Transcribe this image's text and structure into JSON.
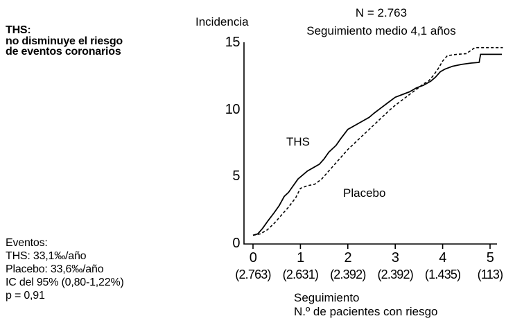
{
  "figure": {
    "headline": [
      "THS:",
      "no disminuye el riesgo",
      "de eventos coronarios"
    ],
    "top_note": {
      "n_total": "N = 2.763",
      "followup": "Seguimiento medio 4,1 años"
    },
    "events_box": {
      "title": "Eventos:",
      "ths_rate": "THS: 33,1‰/año",
      "placebo_rate": "Placebo: 33,6‰/año",
      "ci": "IC del 95% (0,80-1,22%)",
      "p_value": "p = 0,91"
    }
  },
  "colors": {
    "ink": "#000000",
    "background": "#ffffff"
  },
  "chart_data": {
    "type": "line",
    "title": "",
    "ylabel": "Incidencia",
    "xlabel": "Seguimiento",
    "xlabel2": "N.º de pacientes con riesgo",
    "xlim": [
      0,
      5
    ],
    "ylim": [
      0,
      15
    ],
    "grid": false,
    "legend_position": "inline-labels",
    "yticks": {
      "labels": [
        "15",
        "10",
        "5",
        "0"
      ],
      "values": [
        15,
        10,
        5,
        0
      ]
    },
    "xticks": [
      {
        "label": "0",
        "value": 0,
        "count": "(2.763)"
      },
      {
        "label": "1",
        "value": 1,
        "count": "(2.631)"
      },
      {
        "label": "2",
        "value": 2,
        "count": "(2.392)"
      },
      {
        "label": "3",
        "value": 3,
        "count": "(2.392)"
      },
      {
        "label": "4",
        "value": 4,
        "count": "(1.435)"
      },
      {
        "label": "5",
        "value": 5,
        "count": "(113)"
      }
    ],
    "series": [
      {
        "name": "THS",
        "line_style": "solid",
        "points": [
          [
            0,
            0.6
          ],
          [
            0.1,
            0.7
          ],
          [
            0.2,
            1.1
          ],
          [
            0.3,
            1.6
          ],
          [
            0.45,
            2.3
          ],
          [
            0.55,
            2.8
          ],
          [
            0.66,
            3.5
          ],
          [
            0.75,
            3.8
          ],
          [
            0.85,
            4.3
          ],
          [
            0.95,
            4.8
          ],
          [
            1.05,
            5.1
          ],
          [
            1.15,
            5.4
          ],
          [
            1.3,
            5.7
          ],
          [
            1.4,
            5.9
          ],
          [
            1.5,
            6.3
          ],
          [
            1.6,
            6.8
          ],
          [
            1.75,
            7.3
          ],
          [
            1.85,
            7.8
          ],
          [
            2.0,
            8.5
          ],
          [
            2.15,
            8.8
          ],
          [
            2.3,
            9.1
          ],
          [
            2.45,
            9.4
          ],
          [
            2.55,
            9.7
          ],
          [
            2.7,
            10.1
          ],
          [
            2.85,
            10.5
          ],
          [
            3.0,
            10.9
          ],
          [
            3.15,
            11.1
          ],
          [
            3.3,
            11.3
          ],
          [
            3.45,
            11.6
          ],
          [
            3.6,
            11.8
          ],
          [
            3.75,
            12.1
          ],
          [
            3.85,
            12.4
          ],
          [
            3.95,
            12.8
          ],
          [
            4.05,
            13.0
          ],
          [
            4.2,
            13.2
          ],
          [
            4.4,
            13.35
          ],
          [
            4.6,
            13.45
          ],
          [
            4.77,
            13.5
          ],
          [
            4.8,
            14.1
          ],
          [
            5.25,
            14.1
          ]
        ]
      },
      {
        "name": "Placebo",
        "line_style": "dashed",
        "points": [
          [
            0,
            0.6
          ],
          [
            0.15,
            0.7
          ],
          [
            0.3,
            1.0
          ],
          [
            0.45,
            1.5
          ],
          [
            0.6,
            2.1
          ],
          [
            0.75,
            2.7
          ],
          [
            0.9,
            3.4
          ],
          [
            1.0,
            4.1
          ],
          [
            1.15,
            4.3
          ],
          [
            1.3,
            4.4
          ],
          [
            1.45,
            4.8
          ],
          [
            1.6,
            5.4
          ],
          [
            1.75,
            6.0
          ],
          [
            1.9,
            6.6
          ],
          [
            2.0,
            7.0
          ],
          [
            2.15,
            7.5
          ],
          [
            2.3,
            8.0
          ],
          [
            2.45,
            8.5
          ],
          [
            2.6,
            9.0
          ],
          [
            2.75,
            9.5
          ],
          [
            2.9,
            10.0
          ],
          [
            3.0,
            10.3
          ],
          [
            3.15,
            10.7
          ],
          [
            3.3,
            11.1
          ],
          [
            3.45,
            11.5
          ],
          [
            3.6,
            11.9
          ],
          [
            3.7,
            12.1
          ],
          [
            3.8,
            12.5
          ],
          [
            3.9,
            13.0
          ],
          [
            4.0,
            13.6
          ],
          [
            4.1,
            14.0
          ],
          [
            4.3,
            14.1
          ],
          [
            4.5,
            14.15
          ],
          [
            4.6,
            14.4
          ],
          [
            4.68,
            14.6
          ],
          [
            5.27,
            14.6
          ]
        ]
      }
    ]
  }
}
